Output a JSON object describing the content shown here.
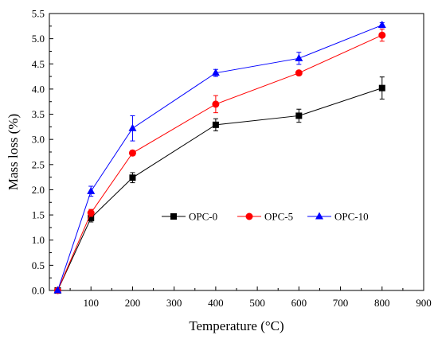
{
  "chart_data": {
    "type": "line",
    "xlabel": "Temperature (°C)",
    "ylabel": "Mass loss (%)",
    "xlim": [
      0,
      900
    ],
    "ylim": [
      0,
      5.5
    ],
    "xticks": [
      100,
      200,
      300,
      400,
      500,
      600,
      700,
      800,
      900
    ],
    "yticks": [
      0.0,
      0.5,
      1.0,
      1.5,
      2.0,
      2.5,
      3.0,
      3.5,
      4.0,
      4.5,
      5.0,
      5.5
    ],
    "xtick_labels": [
      "100",
      "200",
      "300",
      "400",
      "500",
      "600",
      "700",
      "800",
      "900"
    ],
    "ytick_labels": [
      "0.0",
      "0.5",
      "1.0",
      "1.5",
      "2.0",
      "2.5",
      "3.0",
      "3.5",
      "4.0",
      "4.5",
      "5.0",
      "5.5"
    ],
    "grid": false,
    "legend_position": "center",
    "x": [
      20,
      100,
      200,
      400,
      600,
      800
    ],
    "series": [
      {
        "name": "OPC-0",
        "color": "#000000",
        "marker": "square",
        "values": [
          0.0,
          1.44,
          2.24,
          3.29,
          3.47,
          4.02
        ],
        "errors": [
          0.0,
          0.08,
          0.1,
          0.12,
          0.13,
          0.22
        ]
      },
      {
        "name": "OPC-5",
        "color": "#ff0000",
        "marker": "circle",
        "values": [
          0.0,
          1.54,
          2.73,
          3.7,
          4.32,
          5.07
        ],
        "errors": [
          0.0,
          0.07,
          0.05,
          0.17,
          0.04,
          0.12
        ]
      },
      {
        "name": "OPC-10",
        "color": "#0000ff",
        "marker": "triangle",
        "values": [
          0.0,
          1.97,
          3.22,
          4.32,
          4.61,
          5.27
        ],
        "errors": [
          0.0,
          0.1,
          0.25,
          0.07,
          0.12,
          0.05
        ]
      }
    ]
  }
}
